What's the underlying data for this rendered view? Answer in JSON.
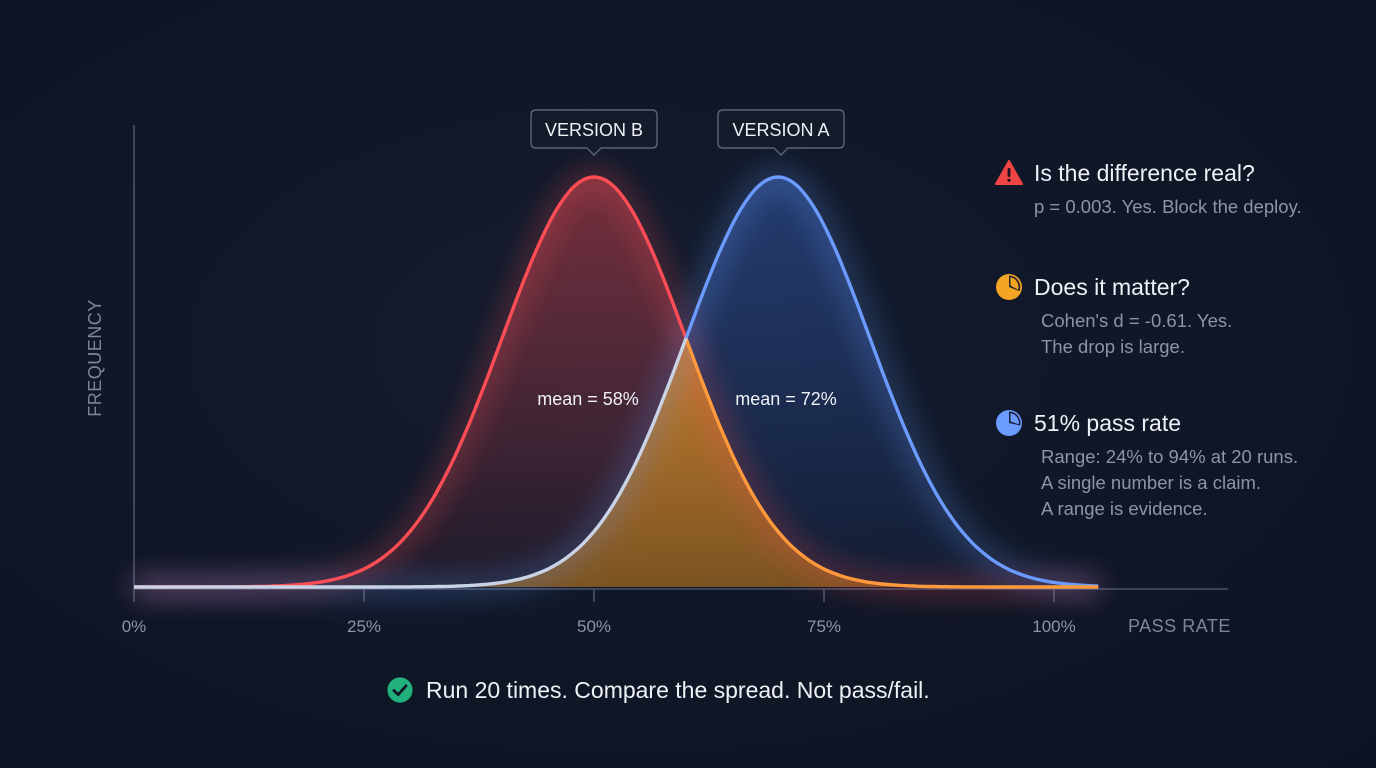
{
  "chart_data": {
    "type": "area",
    "xlabel": "PASS RATE",
    "ylabel": "FREQUENCY",
    "xlim": [
      0,
      1.0
    ],
    "x_ticks": [
      {
        "value": 0,
        "label": "0%"
      },
      {
        "value": 0.25,
        "label": "25%"
      },
      {
        "value": 0.5,
        "label": "50%"
      },
      {
        "value": 0.75,
        "label": "75%"
      },
      {
        "value": 1.0,
        "label": "100%"
      }
    ],
    "grid": false,
    "series": [
      {
        "name": "VERSION B",
        "color": "#ff4d55",
        "peak_x": 0.5,
        "spread": 0.1,
        "mean_label": "mean = 58%"
      },
      {
        "name": "VERSION A",
        "color": "#6b9bff",
        "peak_x": 0.7,
        "spread": 0.1,
        "mean_label": "mean = 72%"
      }
    ],
    "overlap_color": "#f5a31f"
  },
  "info": [
    {
      "icon": "warning-triangle-icon",
      "color": "#ef4444",
      "title": "Is the difference real?",
      "body": [
        "p = 0.003. Yes. Block the deploy."
      ]
    },
    {
      "icon": "pie-chart-icon",
      "color": "#f5a524",
      "title": "Does it matter?",
      "body": [
        "Cohen's d = -0.61. Yes.",
        "The drop is large."
      ]
    },
    {
      "icon": "pie-chart-icon",
      "color": "#6b9bff",
      "title": "51% pass rate",
      "body": [
        "Range: 24% to 94% at 20 runs.",
        "A single number is a claim.",
        "A range is evidence."
      ]
    }
  ],
  "footer": {
    "icon": "check-circle-icon",
    "color": "#22b07d",
    "text": "Run 20 times. Compare the spread. Not pass/fail."
  }
}
